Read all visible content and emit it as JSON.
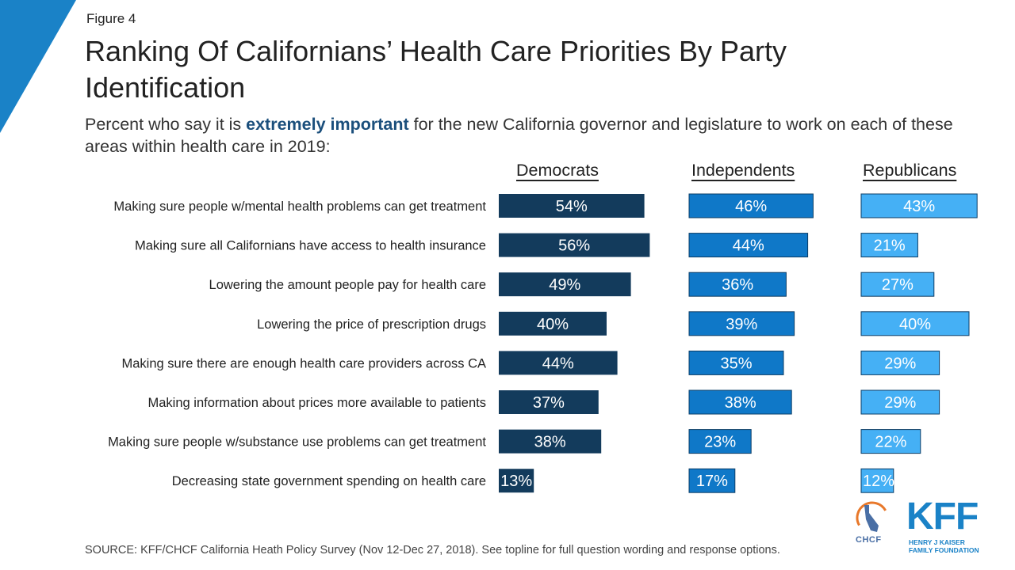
{
  "figure_label": "Figure 4",
  "title": "Ranking Of Californians’ Health Care Priorities By Party Identification",
  "subtitle": {
    "before": "Percent who say it is ",
    "bold": "extremely important",
    "after": " for the new California governor and legislature to work on each of these areas within health care in 2019:"
  },
  "source": "SOURCE: KFF/CHCF California Heath Policy Survey (Nov 12-Dec 27, 2018). See topline for full question wording and response options.",
  "logos": {
    "chcf": "CHCF",
    "kff": "KFF",
    "kff_line1": "HENRY J KAISER",
    "kff_line2": "FAMILY FOUNDATION"
  },
  "colors": {
    "democrats": "#133b5c",
    "independents": "#0f78c8",
    "republicans": "#45b0f5",
    "corner": "#1a82c7"
  },
  "chart_data": {
    "type": "bar",
    "orientation": "horizontal",
    "panels": "one panel per series, shared categories",
    "categories": [
      "Making sure people w/mental health problems can get treatment",
      "Making sure all Californians have access to health insurance",
      "Lowering the amount people pay for health care",
      "Lowering the price of prescription drugs",
      "Making sure there are enough health care providers across CA",
      "Making information about prices more available to patients",
      "Making sure people w/substance use problems can get treatment",
      "Decreasing state government spending on health care"
    ],
    "series": [
      {
        "name": "Democrats",
        "values": [
          54,
          56,
          49,
          40,
          44,
          37,
          38,
          13
        ]
      },
      {
        "name": "Independents",
        "values": [
          46,
          44,
          36,
          39,
          35,
          38,
          23,
          17
        ]
      },
      {
        "name": "Republicans",
        "values": [
          43,
          21,
          27,
          40,
          29,
          29,
          22,
          12
        ]
      }
    ],
    "value_suffix": "%",
    "xlim": [
      0,
      100
    ],
    "grid": false,
    "legend": "column headers above panels"
  }
}
